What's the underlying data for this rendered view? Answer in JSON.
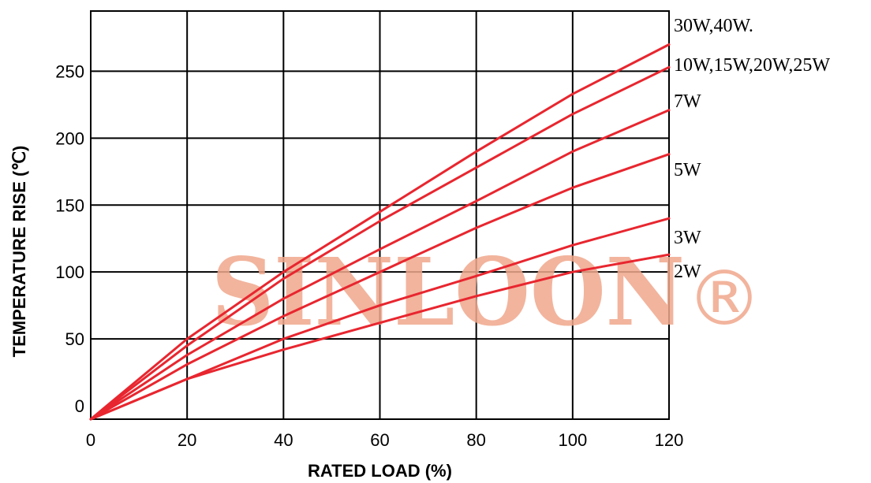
{
  "chart_data": {
    "type": "line",
    "title": "",
    "xlabel": "RATED LOAD (%)",
    "ylabel": "TEMPERATURE RISE (℃)",
    "xlim": [
      0,
      120
    ],
    "ylim": [
      -10,
      295
    ],
    "x_ticks": [
      0,
      20,
      40,
      60,
      80,
      100,
      120
    ],
    "y_ticks": [
      0,
      50,
      100,
      150,
      200,
      250
    ],
    "grid": true,
    "series": [
      {
        "name": "30W,40W.",
        "color": "#e8262f",
        "points": [
          [
            0,
            -10
          ],
          [
            20,
            50
          ],
          [
            40,
            100
          ],
          [
            60,
            145
          ],
          [
            80,
            190
          ],
          [
            100,
            233
          ],
          [
            120,
            270
          ]
        ]
      },
      {
        "name": "10W,15W,20W,25W",
        "color": "#e8262f",
        "points": [
          [
            0,
            -10
          ],
          [
            20,
            45
          ],
          [
            40,
            95
          ],
          [
            60,
            138
          ],
          [
            80,
            178
          ],
          [
            100,
            218
          ],
          [
            120,
            253
          ]
        ]
      },
      {
        "name": "7W",
        "color": "#e8262f",
        "points": [
          [
            0,
            -10
          ],
          [
            20,
            38
          ],
          [
            40,
            80
          ],
          [
            60,
            117
          ],
          [
            80,
            153
          ],
          [
            100,
            190
          ],
          [
            120,
            221
          ]
        ]
      },
      {
        "name": "5W",
        "color": "#e8262f",
        "points": [
          [
            0,
            -10
          ],
          [
            20,
            31
          ],
          [
            40,
            67
          ],
          [
            60,
            100
          ],
          [
            80,
            133
          ],
          [
            100,
            163
          ],
          [
            120,
            188
          ]
        ]
      },
      {
        "name": "3W",
        "color": "#e8262f",
        "points": [
          [
            0,
            -10
          ],
          [
            20,
            20
          ],
          [
            40,
            50
          ],
          [
            60,
            75
          ],
          [
            80,
            97
          ],
          [
            100,
            120
          ],
          [
            120,
            140
          ]
        ]
      },
      {
        "name": "2W",
        "color": "#e8262f",
        "points": [
          [
            0,
            -10
          ],
          [
            20,
            20
          ],
          [
            40,
            42
          ],
          [
            60,
            62
          ],
          [
            80,
            82
          ],
          [
            100,
            100
          ],
          [
            120,
            113
          ]
        ]
      }
    ],
    "watermark": {
      "text": "SINLOON",
      "mark": "®",
      "color": "#f0a88c"
    }
  }
}
